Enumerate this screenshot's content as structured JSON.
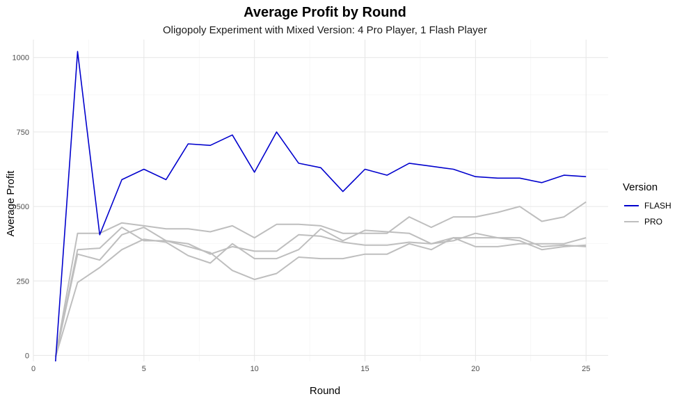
{
  "chart_data": {
    "type": "line",
    "title": "Average Profit by Round",
    "subtitle": "Oligopoly Experiment with Mixed Version: 4 Pro Player, 1 Flash Player",
    "xlabel": "Round",
    "ylabel": "Average Profit",
    "xlim": [
      0,
      26
    ],
    "ylim": [
      -20,
      1060
    ],
    "x_ticks": [
      0,
      5,
      10,
      15,
      20,
      25
    ],
    "y_ticks": [
      0,
      250,
      500,
      750,
      1000
    ],
    "grid": true,
    "legend": {
      "title": "Version",
      "placement": "right",
      "entries": [
        {
          "label": "FLASH",
          "color": "#0000CD"
        },
        {
          "label": "PRO",
          "color": "#BEBEBE"
        }
      ]
    },
    "x": [
      1,
      2,
      3,
      4,
      5,
      6,
      7,
      8,
      9,
      10,
      11,
      12,
      13,
      14,
      15,
      16,
      17,
      18,
      19,
      20,
      21,
      22,
      23,
      24,
      25
    ],
    "series": [
      {
        "version": "PRO",
        "color": "#BEBEBE",
        "values": [
          -5,
          410,
          410,
          445,
          435,
          425,
          425,
          415,
          435,
          395,
          440,
          440,
          435,
          410,
          410,
          410,
          465,
          430,
          465,
          465,
          480,
          500,
          450,
          465,
          515
        ]
      },
      {
        "version": "PRO",
        "color": "#BEBEBE",
        "values": [
          -5,
          245,
          295,
          355,
          390,
          380,
          335,
          310,
          375,
          325,
          325,
          355,
          425,
          385,
          420,
          415,
          410,
          375,
          385,
          410,
          395,
          395,
          365,
          370,
          365
        ]
      },
      {
        "version": "PRO",
        "color": "#BEBEBE",
        "values": [
          -5,
          340,
          320,
          405,
          430,
          385,
          375,
          340,
          365,
          350,
          350,
          405,
          400,
          380,
          370,
          370,
          380,
          375,
          395,
          395,
          395,
          385,
          355,
          365,
          370
        ]
      },
      {
        "version": "PRO",
        "color": "#BEBEBE",
        "values": [
          -5,
          355,
          360,
          430,
          385,
          385,
          365,
          345,
          285,
          255,
          275,
          330,
          325,
          325,
          340,
          340,
          375,
          355,
          395,
          365,
          365,
          375,
          375,
          375,
          395
        ]
      },
      {
        "version": "FLASH",
        "color": "#0000CD",
        "values": [
          -20,
          1020,
          405,
          590,
          625,
          590,
          710,
          705,
          740,
          615,
          750,
          645,
          630,
          550,
          625,
          605,
          645,
          635,
          625,
          600,
          595,
          595,
          580,
          605,
          600
        ]
      }
    ]
  }
}
